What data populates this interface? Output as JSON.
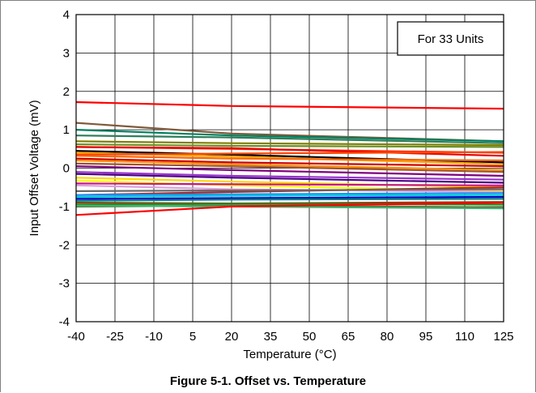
{
  "caption": "Figure 5-1. Offset vs. Temperature",
  "chart_data": {
    "type": "line",
    "xlabel": "Temperature (°C)",
    "ylabel": "Input Offset Voltage (mV)",
    "x_ticks": [
      -40,
      -25,
      -10,
      5,
      20,
      35,
      50,
      65,
      80,
      95,
      110,
      125
    ],
    "y_ticks": [
      -4,
      -3,
      -2,
      -1,
      0,
      1,
      2,
      3,
      4
    ],
    "xlim": [
      -40,
      125
    ],
    "ylim": [
      -4,
      4
    ],
    "grid": true,
    "annotation": "For 33 Units",
    "annotation_placement": "top-right",
    "x": [
      -40,
      20,
      125
    ],
    "series": [
      {
        "color": "#ff0000",
        "values": [
          1.72,
          1.62,
          1.55
        ]
      },
      {
        "color": "#7f5a3c",
        "values": [
          1.18,
          0.9,
          0.7
        ]
      },
      {
        "color": "#007f5f",
        "values": [
          1.0,
          0.85,
          0.7
        ]
      },
      {
        "color": "#2e7d5a",
        "values": [
          0.85,
          0.8,
          0.65
        ]
      },
      {
        "color": "#808000",
        "values": [
          0.7,
          0.65,
          0.6
        ]
      },
      {
        "color": "#6b8e23",
        "values": [
          0.62,
          0.58,
          0.55
        ]
      },
      {
        "color": "#ff3300",
        "values": [
          0.55,
          0.5,
          0.4
        ]
      },
      {
        "color": "#e60000",
        "values": [
          0.55,
          0.52,
          0.32
        ]
      },
      {
        "color": "#000000",
        "values": [
          0.45,
          0.35,
          0.15
        ]
      },
      {
        "color": "#ffa500",
        "values": [
          0.4,
          0.3,
          0.1
        ]
      },
      {
        "color": "#ff6600",
        "values": [
          0.32,
          0.25,
          0.2
        ]
      },
      {
        "color": "#cc0000",
        "values": [
          0.25,
          0.15,
          0.05
        ]
      },
      {
        "color": "#ff8c00",
        "values": [
          0.2,
          0.1,
          -0.05
        ]
      },
      {
        "color": "#a0522d",
        "values": [
          0.12,
          0.05,
          -0.1
        ]
      },
      {
        "color": "#800080",
        "values": [
          0.05,
          -0.05,
          -0.2
        ]
      },
      {
        "color": "#9932cc",
        "values": [
          -0.1,
          -0.2,
          -0.3
        ]
      },
      {
        "color": "#4b0082",
        "values": [
          -0.15,
          -0.25,
          -0.38
        ]
      },
      {
        "color": "#ffd700",
        "values": [
          -0.25,
          -0.35,
          -0.5
        ]
      },
      {
        "color": "#ffff00",
        "values": [
          -0.32,
          -0.45,
          -0.6
        ]
      },
      {
        "color": "#dda0dd",
        "values": [
          -0.45,
          -0.55,
          -0.62
        ]
      },
      {
        "color": "#b22222",
        "values": [
          -0.7,
          -0.62,
          -0.5
        ]
      },
      {
        "color": "#1e90ff",
        "values": [
          -0.7,
          -0.68,
          -0.65
        ]
      },
      {
        "color": "#00ced1",
        "values": [
          -0.75,
          -0.72,
          -0.7
        ]
      },
      {
        "color": "#0000cd",
        "values": [
          -0.8,
          -0.78,
          -0.75
        ]
      },
      {
        "color": "#008080",
        "values": [
          -0.85,
          -0.82,
          -0.8
        ]
      },
      {
        "color": "#8b4513",
        "values": [
          -0.9,
          -0.92,
          -0.88
        ]
      },
      {
        "color": "#228b22",
        "values": [
          -0.95,
          -0.93,
          -0.95
        ]
      },
      {
        "color": "#556b2f",
        "values": [
          -1.0,
          -0.98,
          -1.02
        ]
      },
      {
        "color": "#3cb371",
        "values": [
          -0.98,
          -1.0,
          -1.05
        ]
      },
      {
        "color": "#ff0000",
        "values": [
          -1.22,
          -1.0,
          -0.9
        ]
      },
      {
        "color": "#c71585",
        "values": [
          -0.4,
          -0.42,
          -0.45
        ]
      },
      {
        "color": "#ff4500",
        "values": [
          0.35,
          0.38,
          0.42
        ]
      },
      {
        "color": "#696969",
        "values": [
          -0.6,
          -0.58,
          -0.55
        ]
      }
    ]
  }
}
